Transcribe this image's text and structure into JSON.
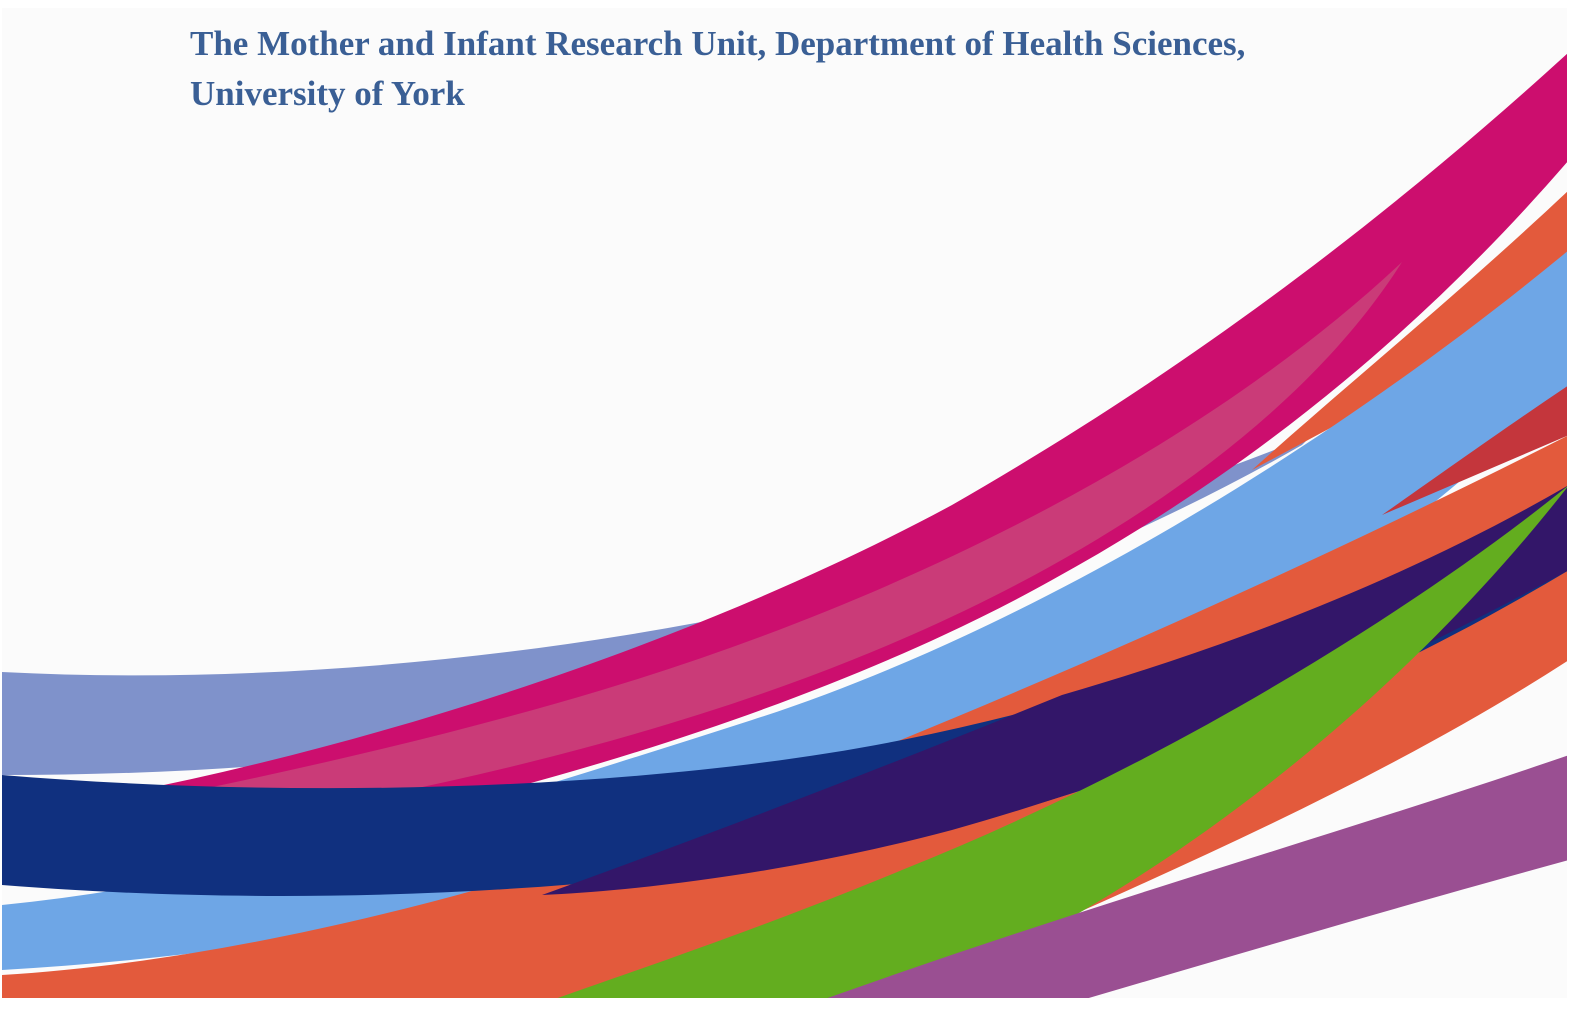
{
  "header": {
    "title_lines": [
      "The Mother and Infant Research Unit, Department of Health Sciences,",
      "University of York"
    ]
  }
}
